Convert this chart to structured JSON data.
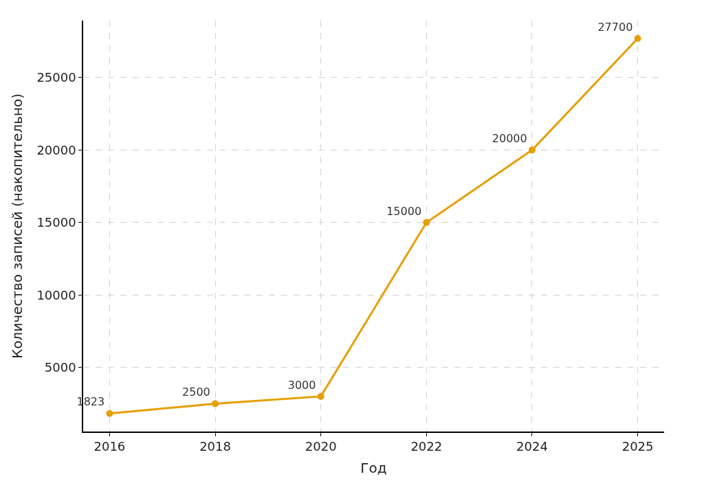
{
  "chart_data": {
    "type": "line",
    "xlabel": "Год",
    "ylabel": "Количество записей (накопительно)",
    "categories": [
      "2016",
      "2018",
      "2020",
      "2022",
      "2024",
      "2025"
    ],
    "series": [
      {
        "color": "#e69f00",
        "values": [
          1823,
          2500,
          3000,
          15000,
          20000,
          27700
        ]
      }
    ],
    "ylim": [
      576,
      28930
    ],
    "yticks": [
      5000,
      10000,
      15000,
      20000,
      25000
    ],
    "grid": true,
    "marker": "circle",
    "line_style": "solid",
    "data_labels": true
  }
}
